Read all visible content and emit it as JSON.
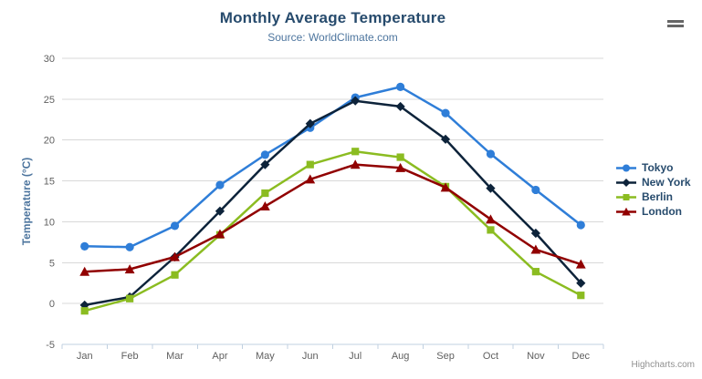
{
  "header": {
    "title": "Monthly Average Temperature",
    "subtitle": "Source: WorldClimate.com"
  },
  "toolbar": {
    "context_menu_icon": "hamburger-icon"
  },
  "credits": {
    "label": "Highcharts.com"
  },
  "colors": {
    "title": "#274b6d",
    "subtitle": "#4d759e",
    "axis_title": "#4d759e",
    "axis_labels": "#606060",
    "gridline": "#d8d8d8",
    "axis_line": "#c0d0e0",
    "legend_text": "#274b6d",
    "credits_text": "#909090"
  },
  "chart_data": {
    "type": "line",
    "title": "Monthly Average Temperature",
    "subtitle": "Source: WorldClimate.com",
    "xlabel": "",
    "ylabel": "Temperature (°C)",
    "ylim": [
      -5,
      30
    ],
    "ytick_step": 5,
    "grid": true,
    "legend_position": "right",
    "categories": [
      "Jan",
      "Feb",
      "Mar",
      "Apr",
      "May",
      "Jun",
      "Jul",
      "Aug",
      "Sep",
      "Oct",
      "Nov",
      "Dec"
    ],
    "series": [
      {
        "name": "Tokyo",
        "color": "#2f7ed8",
        "marker": "circle",
        "values": [
          7.0,
          6.9,
          9.5,
          14.5,
          18.2,
          21.5,
          25.2,
          26.5,
          23.3,
          18.3,
          13.9,
          9.6
        ]
      },
      {
        "name": "New York",
        "color": "#0d233a",
        "marker": "diamond",
        "values": [
          -0.2,
          0.8,
          5.7,
          11.3,
          17.0,
          22.0,
          24.8,
          24.1,
          20.1,
          14.1,
          8.6,
          2.5
        ]
      },
      {
        "name": "Berlin",
        "color": "#8bbc21",
        "marker": "square",
        "values": [
          -0.9,
          0.6,
          3.5,
          8.4,
          13.5,
          17.0,
          18.6,
          17.9,
          14.3,
          9.0,
          3.9,
          1.0
        ]
      },
      {
        "name": "London",
        "color": "#910000",
        "marker": "triangle",
        "values": [
          3.9,
          4.2,
          5.7,
          8.5,
          11.9,
          15.2,
          17.0,
          16.6,
          14.2,
          10.3,
          6.6,
          4.8
        ]
      }
    ]
  }
}
